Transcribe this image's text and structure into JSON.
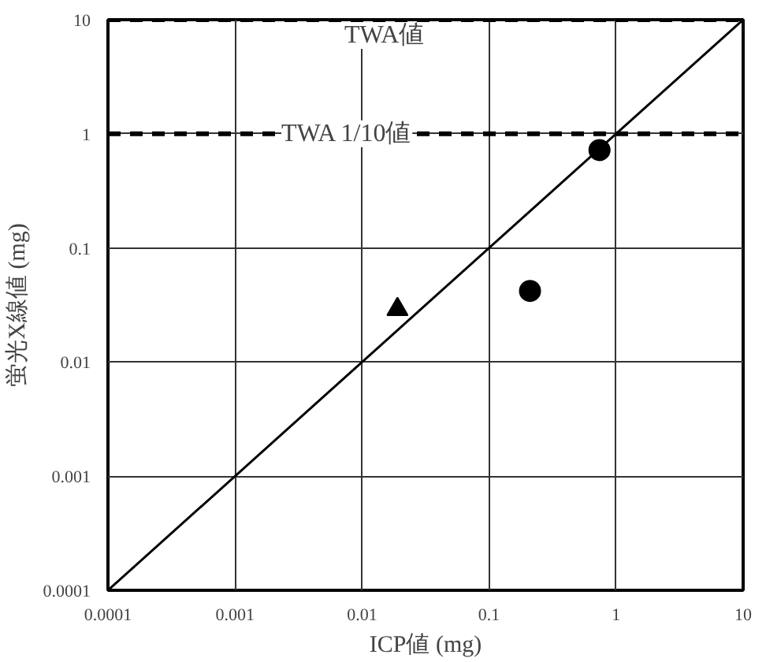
{
  "chart_data": {
    "type": "scatter",
    "xlabel": "ICP値 (mg)",
    "ylabel": "蛍光X線値 (mg)",
    "log": "xy",
    "xlim": [
      0.0001,
      10
    ],
    "ylim": [
      0.0001,
      10
    ],
    "xticks": [
      0.0001,
      0.001,
      0.01,
      0.1,
      1,
      10
    ],
    "yticks": [
      0.0001,
      0.001,
      0.01,
      0.1,
      1,
      10
    ],
    "grid": true,
    "series": [
      {
        "type": "line",
        "color": "#000000",
        "x": [
          0.0001,
          10
        ],
        "values": [
          0.0001,
          10
        ],
        "marker": "none"
      },
      {
        "color": "#000000",
        "marker": "triangle",
        "x": [
          0.019
        ],
        "values": [
          0.029
        ]
      },
      {
        "color": "#000000",
        "marker": "circle",
        "x": [
          0.21,
          0.74
        ],
        "values": [
          0.042,
          0.72
        ]
      }
    ],
    "ref_lines": [
      {
        "axis": "y",
        "value": 10,
        "label": "TWA値",
        "line_style": "dashed",
        "color": "#000000"
      },
      {
        "axis": "y",
        "value": 1,
        "label": "TWA 1/10値",
        "line_style": "dashed",
        "color": "#000000"
      }
    ]
  }
}
